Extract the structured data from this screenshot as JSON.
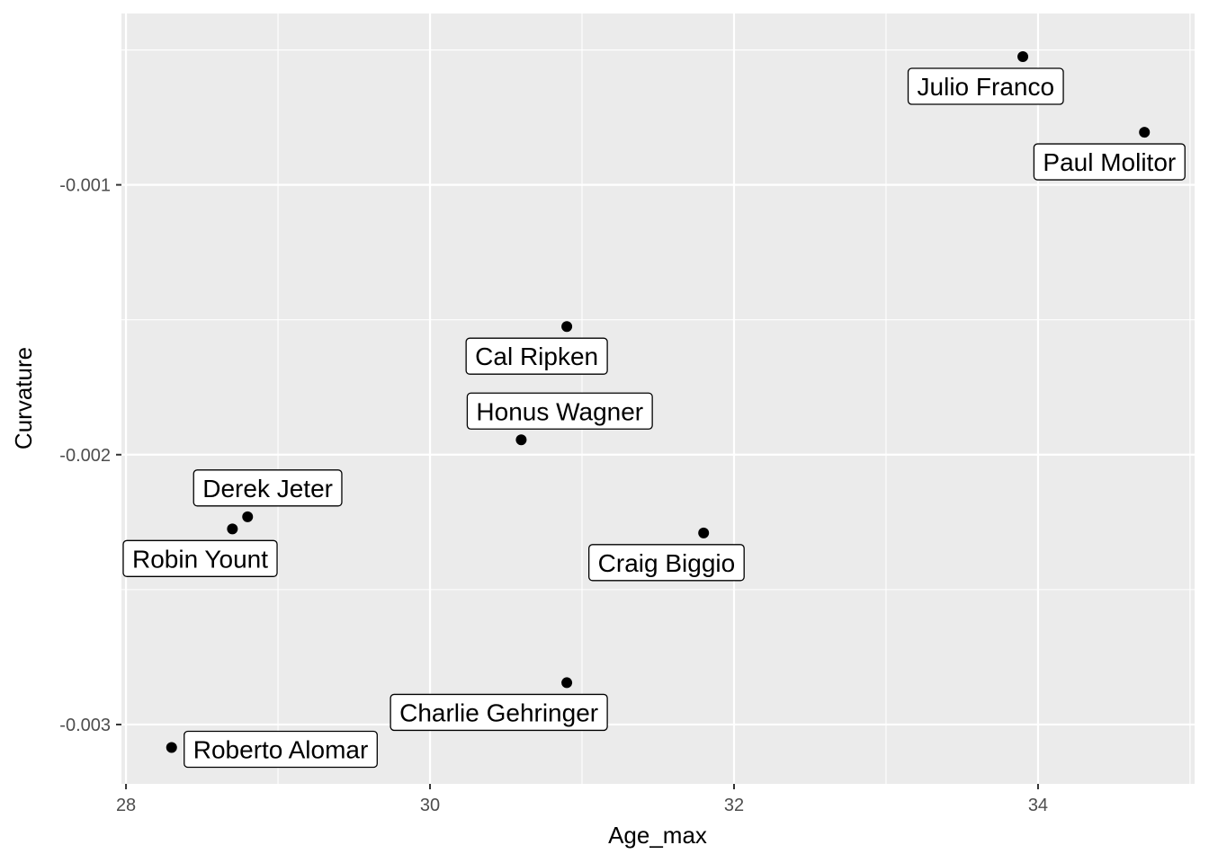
{
  "chart_data": {
    "type": "scatter",
    "title": "",
    "xlabel": "Age_max",
    "ylabel": "Curvature",
    "xlim": [
      27.97,
      35.03
    ],
    "ylim": [
      -0.00322,
      -0.000365
    ],
    "x_ticks": [
      28,
      30,
      32,
      34
    ],
    "x_tick_labels": [
      "28",
      "30",
      "32",
      "34"
    ],
    "y_ticks": [
      -0.003,
      -0.002,
      -0.001
    ],
    "y_tick_labels": [
      "-0.003",
      "-0.002",
      "-0.001"
    ],
    "grid": true,
    "legend": "none",
    "colors": {
      "panel": "#ebebeb",
      "grid": "#ffffff",
      "point": "#000000",
      "label_bg": "#ffffff"
    },
    "points": [
      {
        "name": "Julio Franco",
        "x": 33.9,
        "y": -0.000525,
        "label_pos": "below-left"
      },
      {
        "name": "Paul Molitor",
        "x": 34.7,
        "y": -0.000805,
        "label_pos": "below-left"
      },
      {
        "name": "Cal Ripken",
        "x": 30.9,
        "y": -0.001525,
        "label_pos": "below-left"
      },
      {
        "name": "Honus Wagner",
        "x": 30.6,
        "y": -0.001945,
        "label_pos": "above-right"
      },
      {
        "name": "Derek Jeter",
        "x": 28.8,
        "y": -0.00223,
        "label_pos": "above-right"
      },
      {
        "name": "Robin Yount",
        "x": 28.7,
        "y": -0.002275,
        "label_pos": "below-left"
      },
      {
        "name": "Craig Biggio",
        "x": 31.8,
        "y": -0.00229,
        "label_pos": "below-left"
      },
      {
        "name": "Charlie Gehringer",
        "x": 30.9,
        "y": -0.002845,
        "label_pos": "below-left"
      },
      {
        "name": "Roberto Alomar",
        "x": 28.3,
        "y": -0.003085,
        "label_pos": "right"
      }
    ]
  }
}
